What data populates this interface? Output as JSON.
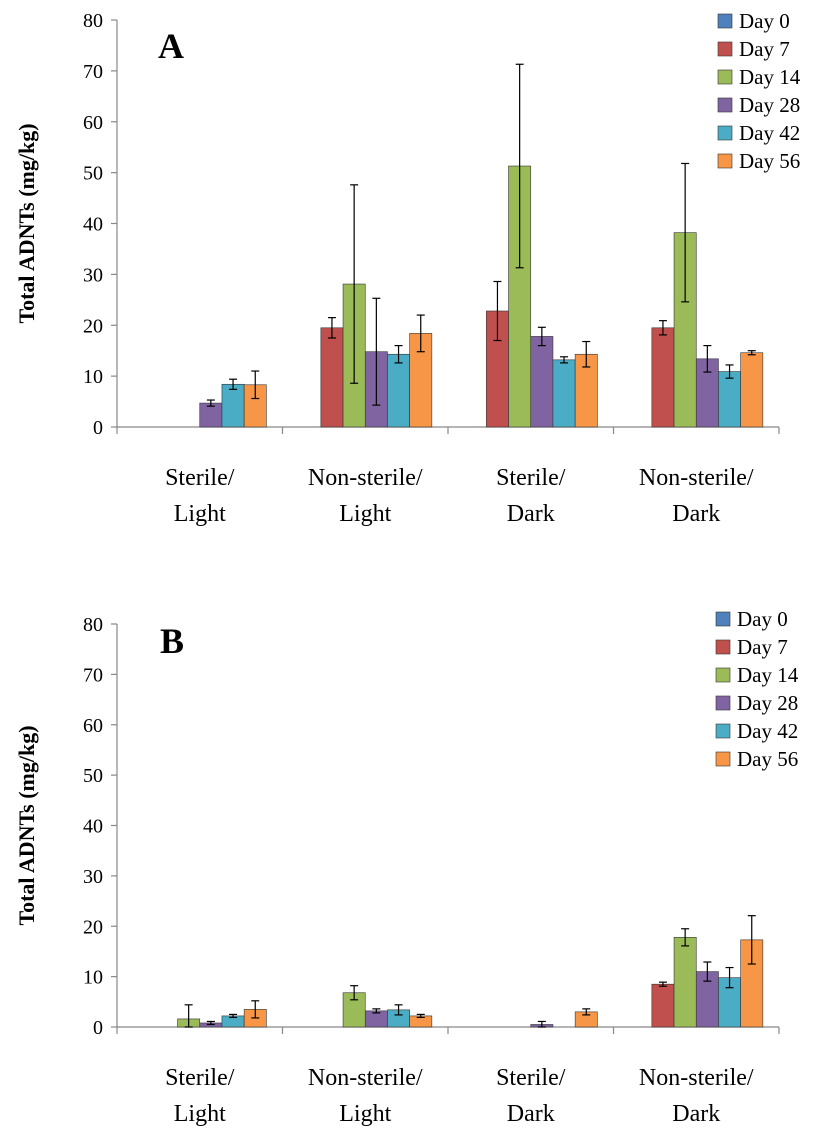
{
  "chart_data": [
    {
      "type": "bar",
      "panel_label": "A",
      "ylabel": "Total ADNTs (mg/kg)",
      "xlabel": "",
      "ylim": [
        0,
        80
      ],
      "yticks": [
        0,
        10,
        20,
        30,
        40,
        50,
        60,
        70,
        80
      ],
      "categories": [
        {
          "line1": "Sterile/",
          "line2": "Light"
        },
        {
          "line1": "Non-sterile/",
          "line2": "Light"
        },
        {
          "line1": "Sterile/",
          "line2": "Dark"
        },
        {
          "line1": "Non-sterile/",
          "line2": "Dark"
        }
      ],
      "legend_position": "top-right",
      "grid": false,
      "series": [
        {
          "name": "Day 0",
          "color": "#4F81BD",
          "values": [
            0,
            0,
            0,
            0
          ],
          "errors": [
            0,
            0,
            0,
            0
          ]
        },
        {
          "name": "Day 7",
          "color": "#C0504D",
          "values": [
            0,
            19.5,
            22.8,
            19.5
          ],
          "errors": [
            0,
            2,
            5.8,
            1.4
          ]
        },
        {
          "name": "Day 14",
          "color": "#9BBB59",
          "values": [
            0,
            28.1,
            51.3,
            38.2
          ],
          "errors": [
            0,
            19.5,
            20,
            13.6
          ]
        },
        {
          "name": "Day 28",
          "color": "#8064A2",
          "values": [
            4.7,
            14.8,
            17.8,
            13.4
          ],
          "errors": [
            0.6,
            10.5,
            1.8,
            2.6
          ]
        },
        {
          "name": "Day 42",
          "color": "#4BACC6",
          "values": [
            8.4,
            14.3,
            13.2,
            10.9
          ],
          "errors": [
            1,
            1.7,
            0.6,
            1.3
          ]
        },
        {
          "name": "Day 56",
          "color": "#F79646",
          "values": [
            8.3,
            18.4,
            14.3,
            14.6
          ],
          "errors": [
            2.7,
            3.6,
            2.5,
            0.4
          ]
        }
      ]
    },
    {
      "type": "bar",
      "panel_label": "B",
      "ylabel": "Total ADNTs (mg/kg)",
      "xlabel": "",
      "ylim": [
        0,
        80
      ],
      "yticks": [
        0,
        10,
        20,
        30,
        40,
        50,
        60,
        70,
        80
      ],
      "categories": [
        {
          "line1": "Sterile/",
          "line2": "Light"
        },
        {
          "line1": "Non-sterile/",
          "line2": "Light"
        },
        {
          "line1": "Sterile/",
          "line2": "Dark"
        },
        {
          "line1": "Non-sterile/",
          "line2": "Dark"
        }
      ],
      "legend_position": "top-right",
      "grid": false,
      "series": [
        {
          "name": "Day 0",
          "color": "#4F81BD",
          "values": [
            0,
            0,
            0,
            0
          ],
          "errors": [
            0,
            0,
            0,
            0
          ]
        },
        {
          "name": "Day 7",
          "color": "#C0504D",
          "values": [
            0,
            0,
            0,
            8.5
          ],
          "errors": [
            0,
            0,
            0,
            0.4
          ]
        },
        {
          "name": "Day 14",
          "color": "#9BBB59",
          "values": [
            1.6,
            6.8,
            0,
            17.8
          ],
          "errors": [
            2.8,
            1.4,
            0,
            1.7
          ]
        },
        {
          "name": "Day 28",
          "color": "#8064A2",
          "values": [
            0.8,
            3.2,
            0.5,
            11
          ],
          "errors": [
            0.3,
            0.4,
            0.6,
            1.9
          ]
        },
        {
          "name": "Day 42",
          "color": "#4BACC6",
          "values": [
            2.2,
            3.4,
            0,
            9.8
          ],
          "errors": [
            0.3,
            1,
            0,
            2
          ]
        },
        {
          "name": "Day 56",
          "color": "#F79646",
          "values": [
            3.5,
            2.2,
            3,
            17.3
          ],
          "errors": [
            1.7,
            0.3,
            0.6,
            4.8
          ]
        }
      ]
    }
  ]
}
